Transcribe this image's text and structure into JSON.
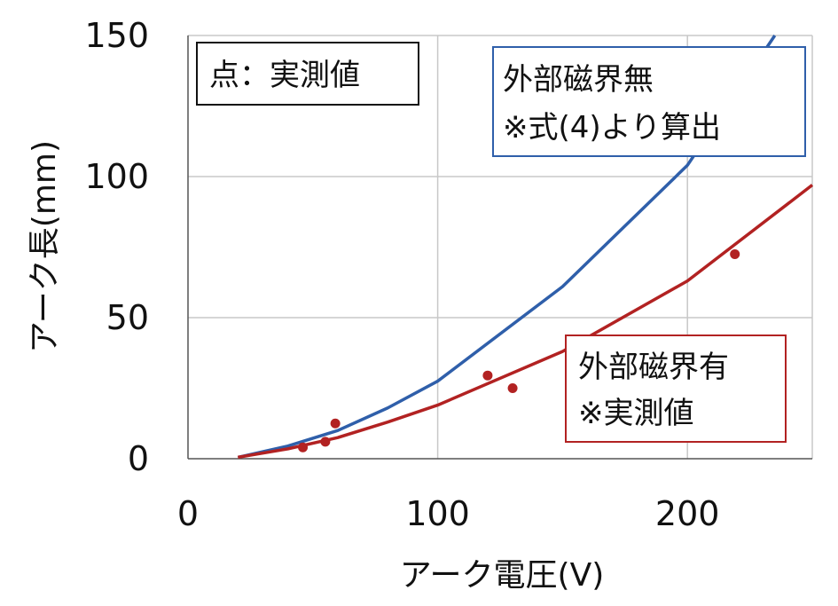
{
  "chart_data": {
    "type": "line",
    "xlabel": "アーク電圧(V)",
    "ylabel": "アーク長(mm)",
    "xlim": [
      0,
      250
    ],
    "ylim": [
      0,
      150
    ],
    "x_ticks": [
      0,
      100,
      200
    ],
    "y_ticks": [
      0,
      50,
      100,
      150
    ],
    "grid": true,
    "series": [
      {
        "kind": "line",
        "color": "#2f5faa",
        "x": [
          20,
          40,
          60,
          80,
          100,
          150,
          200,
          235
        ],
        "y": [
          0.5,
          4.5,
          10,
          18,
          27.5,
          61,
          104,
          150
        ]
      },
      {
        "kind": "line",
        "color": "#b22222",
        "x": [
          20,
          40,
          60,
          80,
          100,
          150,
          200,
          250
        ],
        "y": [
          0.5,
          3.5,
          7.5,
          13,
          19,
          38,
          63,
          97
        ]
      },
      {
        "kind": "scatter",
        "color": "#b22222",
        "x": [
          46,
          55,
          59,
          120,
          130,
          219
        ],
        "y": [
          4,
          6,
          12.5,
          29.5,
          25,
          72.5
        ]
      }
    ],
    "annotations": {
      "points_note": "点：実測値",
      "blue_line_1": "外部磁界無",
      "blue_line_2": "※式(4)より算出",
      "red_line_1": "外部磁界有",
      "red_line_2": "※実測値"
    }
  }
}
